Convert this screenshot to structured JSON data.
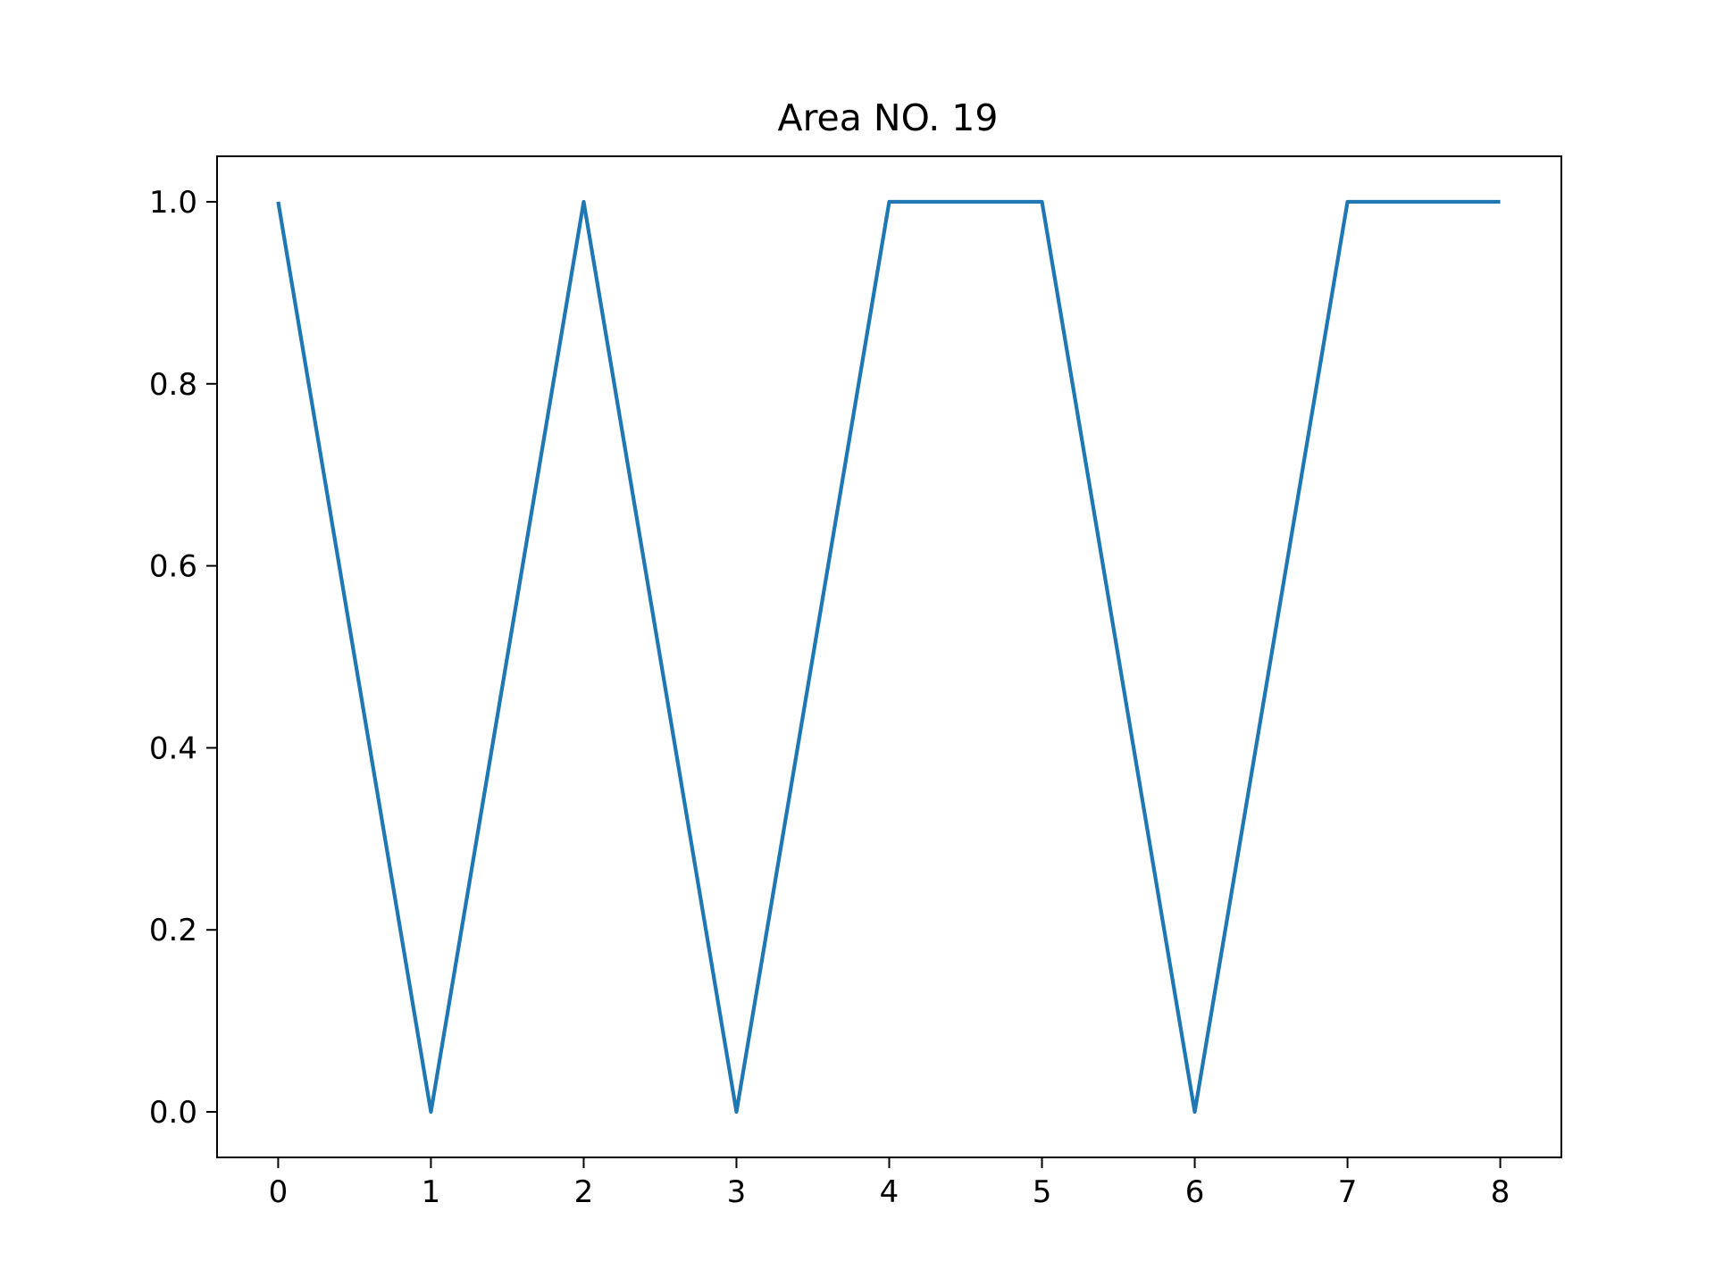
{
  "chart_data": {
    "type": "line",
    "title": "Area NO. 19",
    "xlabel": "",
    "ylabel": "",
    "x": [
      0,
      1,
      2,
      3,
      4,
      5,
      6,
      7,
      8
    ],
    "series": [
      {
        "values": [
          1.0,
          0.0,
          1.0,
          0.0,
          1.0,
          1.0,
          0.0,
          1.0,
          1.0
        ],
        "color": "#1f77b4"
      }
    ],
    "xlim": [
      -0.4,
      8.4
    ],
    "ylim": [
      -0.05,
      1.05
    ],
    "xticks": [
      0,
      1,
      2,
      3,
      4,
      5,
      6,
      7,
      8
    ],
    "xtick_labels": [
      "0",
      "1",
      "2",
      "3",
      "4",
      "5",
      "6",
      "7",
      "8"
    ],
    "yticks": [
      0.0,
      0.2,
      0.4,
      0.6,
      0.8,
      1.0
    ],
    "ytick_labels": [
      "0.0",
      "0.2",
      "0.4",
      "0.6",
      "0.8",
      "1.0"
    ],
    "grid": false,
    "legend": "none"
  }
}
